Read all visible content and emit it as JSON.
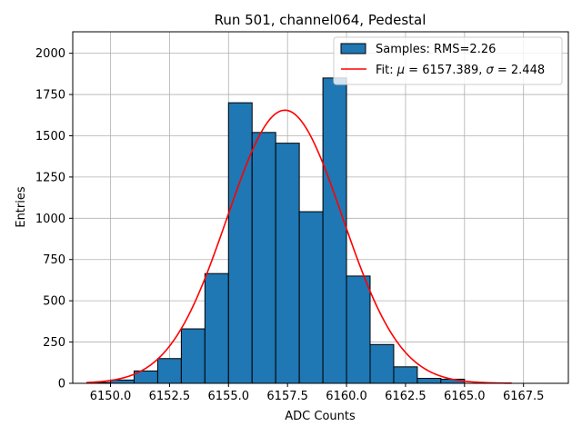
{
  "chart_data": {
    "type": "bar",
    "title": "Run 501, channel064, Pedestal",
    "xlabel": "ADC Counts",
    "ylabel": "Entries",
    "xlim": [
      6148.4,
      6169.4
    ],
    "ylim": [
      0,
      2130
    ],
    "xticks": [
      6150.0,
      6152.5,
      6155.0,
      6157.5,
      6160.0,
      6162.5,
      6165.0,
      6167.5
    ],
    "xtick_labels": [
      "6150.0",
      "6152.5",
      "6155.0",
      "6157.5",
      "6160.0",
      "6162.5",
      "6165.0",
      "6167.5"
    ],
    "yticks": [
      0,
      250,
      500,
      750,
      1000,
      1250,
      1500,
      1750,
      2000
    ],
    "ytick_labels": [
      "0",
      "250",
      "500",
      "750",
      "1000",
      "1250",
      "1500",
      "1750",
      "2000"
    ],
    "grid": true,
    "legend_position": "top-right",
    "histogram": {
      "name": "Samples: RMS=2.26",
      "color": "#1f77b4",
      "bin_edges": [
        6149.0,
        6150.0,
        6151.0,
        6152.0,
        6153.0,
        6154.0,
        6155.0,
        6156.0,
        6157.0,
        6158.0,
        6159.0,
        6160.0,
        6161.0,
        6162.0,
        6163.0,
        6164.0,
        6165.0
      ],
      "counts": [
        5,
        20,
        75,
        150,
        330,
        665,
        1700,
        1520,
        1455,
        1040,
        1850,
        650,
        235,
        100,
        30,
        25
      ]
    },
    "fit": {
      "name_prefix": "Fit: ",
      "mu_symbol": "μ",
      "sigma_symbol": "σ",
      "mu_text": " = 6157.389, ",
      "sigma_text": " = 2.448",
      "color": "#ff0000",
      "mu": 6157.389,
      "sigma": 2.448,
      "amplitude": 1655,
      "x_range": [
        6149.0,
        6167.0
      ]
    }
  }
}
